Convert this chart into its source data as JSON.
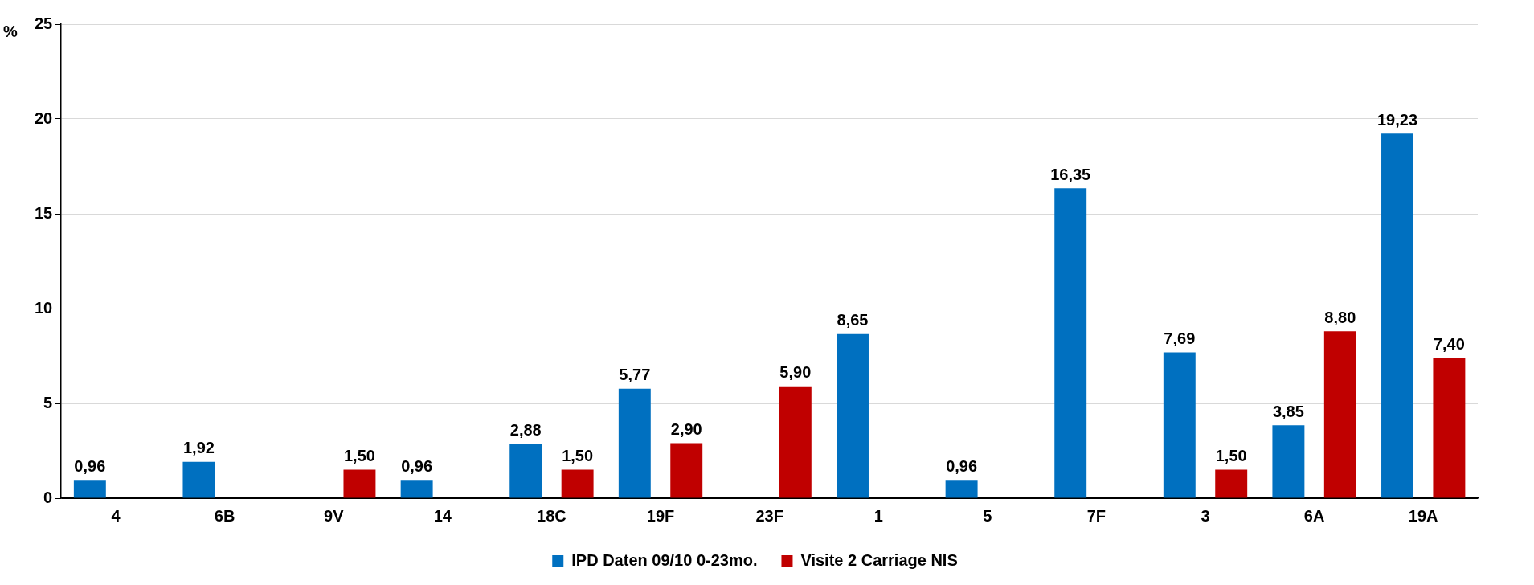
{
  "chart_data": {
    "type": "bar",
    "ylabel": "%",
    "categories": [
      "4",
      "6B",
      "9V",
      "14",
      "18C",
      "19F",
      "23F",
      "1",
      "5",
      "7F",
      "3",
      "6A",
      "19A"
    ],
    "series": [
      {
        "name": "IPD Daten 09/10 0-23mo.",
        "color": "#0070c0",
        "values": [
          0.96,
          1.92,
          null,
          0.96,
          2.88,
          5.77,
          null,
          8.65,
          0.96,
          16.35,
          7.69,
          3.85,
          19.23
        ],
        "value_labels": [
          "0,96",
          "1,92",
          null,
          "0,96",
          "2,88",
          "5,77",
          null,
          "8,65",
          "0,96",
          "16,35",
          "7,69",
          "3,85",
          "19,23"
        ]
      },
      {
        "name": "Visite 2 Carriage NIS",
        "color": "#c00000",
        "values": [
          null,
          null,
          1.5,
          null,
          1.5,
          2.9,
          5.9,
          null,
          null,
          null,
          1.5,
          8.8,
          7.4
        ],
        "value_labels": [
          null,
          null,
          "1,50",
          null,
          "1,50",
          "2,90",
          "5,90",
          null,
          null,
          null,
          "1,50",
          "8,80",
          "7,40"
        ]
      }
    ],
    "ylim": [
      0,
      25
    ],
    "yticks": [
      0,
      5,
      10,
      15,
      20,
      25
    ],
    "grid": "y",
    "legend": "bottom"
  }
}
